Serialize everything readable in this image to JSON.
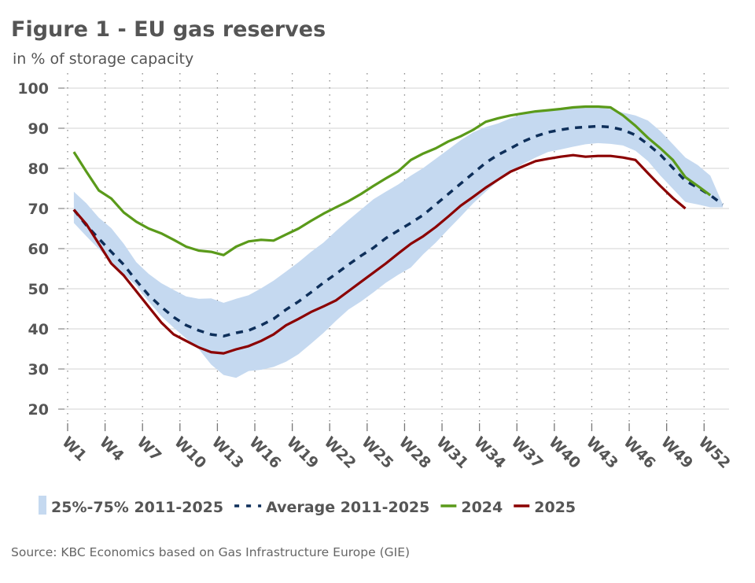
{
  "chart_data": {
    "type": "line",
    "title": "Figure 1 - EU gas reserves",
    "subtitle": "in % of storage capacity",
    "xlabel": "",
    "ylabel": "in % of storage capacity",
    "ylim": [
      20,
      100
    ],
    "yticks": [
      20,
      30,
      40,
      50,
      60,
      70,
      80,
      90,
      100
    ],
    "ytick_labels": [
      "20",
      "30",
      "40",
      "50",
      "60",
      "70",
      "80",
      "90",
      "100"
    ],
    "weeks": 53,
    "xtick_labels": [
      "W1",
      "W4",
      "W7",
      "W10",
      "W13",
      "W16",
      "W19",
      "W22",
      "W25",
      "W28",
      "W31",
      "W34",
      "W37",
      "W40",
      "W43",
      "W46",
      "W49",
      "W52"
    ],
    "grid": "horizontal solid, vertical dotted",
    "legend_position": "bottom",
    "band": {
      "name": "25%-75% 2011-2025",
      "color": "#c5d9f0",
      "lower": [
        66.4,
        63.1,
        59.9,
        56.6,
        53.7,
        50.7,
        46.8,
        43.2,
        40.3,
        37.6,
        35.0,
        31.1,
        28.5,
        27.8,
        29.5,
        29.8,
        30.5,
        31.8,
        33.7,
        36.3,
        39.0,
        42.0,
        44.8,
        46.8,
        49.1,
        51.5,
        53.5,
        55.3,
        58.6,
        61.5,
        64.8,
        68.0,
        71.3,
        74.2,
        76.9,
        79.2,
        81.1,
        82.7,
        84.1,
        84.7,
        85.4,
        86.0,
        86.3,
        86.1,
        85.7,
        84.4,
        81.8,
        78.2,
        74.9,
        71.6,
        71.0,
        70.3,
        70.3
      ],
      "upper": [
        74.2,
        71.3,
        67.7,
        65.1,
        61.2,
        56.6,
        53.7,
        51.4,
        49.7,
        48.1,
        47.5,
        47.6,
        46.5,
        47.5,
        48.4,
        50.1,
        52.0,
        54.3,
        56.6,
        59.2,
        61.5,
        64.4,
        67.1,
        69.7,
        72.3,
        74.2,
        76.0,
        78.2,
        80.1,
        82.4,
        84.7,
        87.0,
        89.0,
        90.3,
        91.2,
        92.5,
        93.5,
        94.2,
        94.5,
        94.8,
        95.2,
        95.2,
        95.2,
        94.8,
        93.9,
        93.2,
        91.9,
        89.3,
        86.0,
        82.7,
        80.8,
        78.2,
        71.0
      ]
    },
    "series": [
      {
        "name": "Average 2011-2025",
        "color": "#0e2f5a",
        "style": "dashed",
        "values": [
          69.7,
          65.8,
          62.5,
          59.2,
          56.0,
          52.0,
          48.4,
          45.5,
          42.9,
          40.9,
          39.6,
          38.6,
          38.2,
          39.0,
          39.6,
          40.9,
          42.5,
          44.8,
          46.8,
          49.1,
          51.5,
          53.7,
          56.0,
          58.2,
          60.2,
          62.6,
          64.5,
          66.4,
          68.4,
          71.0,
          73.6,
          76.2,
          78.8,
          81.4,
          83.4,
          85.0,
          86.7,
          88.0,
          89.0,
          89.6,
          90.1,
          90.3,
          90.5,
          90.3,
          89.6,
          88.3,
          86.0,
          83.4,
          80.1,
          76.9,
          75.2,
          73.3,
          71.0
        ]
      },
      {
        "name": "2024",
        "color": "#5a9a1a",
        "style": "solid",
        "values": [
          84.1,
          79.2,
          74.5,
          72.5,
          69.0,
          66.7,
          65.0,
          63.8,
          62.2,
          60.5,
          59.5,
          59.2,
          58.4,
          60.5,
          61.8,
          62.2,
          62.0,
          63.5,
          65.0,
          66.9,
          68.7,
          70.3,
          71.8,
          73.6,
          75.6,
          77.5,
          79.3,
          82.1,
          83.7,
          85.0,
          86.7,
          88.0,
          89.6,
          91.6,
          92.5,
          93.2,
          93.7,
          94.2,
          94.5,
          94.8,
          95.2,
          95.4,
          95.4,
          95.2,
          93.2,
          90.6,
          87.6,
          85.0,
          82.1,
          77.8,
          75.6,
          73.3,
          null
        ]
      },
      {
        "name": "2025",
        "color": "#8b0000",
        "style": "solid",
        "values": [
          69.7,
          66.1,
          61.2,
          56.3,
          53.3,
          49.4,
          45.5,
          41.6,
          38.6,
          37.0,
          35.4,
          34.2,
          33.9,
          34.9,
          35.7,
          37.0,
          38.6,
          40.9,
          42.5,
          44.2,
          45.6,
          47.1,
          49.4,
          51.7,
          54.0,
          56.3,
          58.8,
          61.2,
          63.1,
          65.4,
          68.0,
          70.7,
          72.9,
          75.2,
          77.2,
          79.2,
          80.5,
          81.8,
          82.4,
          82.9,
          83.3,
          82.9,
          83.1,
          83.1,
          82.7,
          82.1,
          78.8,
          75.6,
          72.6,
          70.0,
          null,
          null,
          null
        ]
      }
    ],
    "source": "Source: KBC Economics based on Gas Infrastructure Europe (GIE)"
  }
}
